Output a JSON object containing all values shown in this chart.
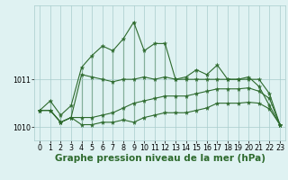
{
  "title": "Graphe pression niveau de la mer (hPa)",
  "x_labels": [
    "0",
    "1",
    "2",
    "3",
    "4",
    "5",
    "6",
    "7",
    "8",
    "9",
    "10",
    "11",
    "12",
    "13",
    "14",
    "15",
    "16",
    "17",
    "18",
    "19",
    "20",
    "21",
    "22",
    "23"
  ],
  "hours": [
    0,
    1,
    2,
    3,
    4,
    5,
    6,
    7,
    8,
    9,
    10,
    11,
    12,
    13,
    14,
    15,
    16,
    17,
    18,
    19,
    20,
    21,
    22,
    23
  ],
  "line1": [
    1010.35,
    1010.55,
    1010.25,
    1010.45,
    1011.25,
    1011.5,
    1011.7,
    1011.6,
    1011.85,
    1012.2,
    1011.6,
    1011.75,
    1011.75,
    1011.0,
    1011.05,
    1011.2,
    1011.1,
    1011.3,
    1011.0,
    1011.0,
    1011.05,
    1010.85,
    1010.45,
    1010.05
  ],
  "line2": [
    1010.35,
    1010.35,
    1010.1,
    1010.2,
    1011.1,
    1011.05,
    1011.0,
    1010.95,
    1011.0,
    1011.0,
    1011.05,
    1011.0,
    1011.05,
    1011.0,
    1011.0,
    1011.0,
    1011.0,
    1011.0,
    1011.0,
    1011.0,
    1011.0,
    1011.0,
    1010.7,
    1010.05
  ],
  "line3": [
    1010.35,
    1010.35,
    1010.1,
    1010.2,
    1010.2,
    1010.2,
    1010.25,
    1010.3,
    1010.4,
    1010.5,
    1010.55,
    1010.6,
    1010.65,
    1010.65,
    1010.65,
    1010.7,
    1010.75,
    1010.8,
    1010.8,
    1010.8,
    1010.82,
    1010.75,
    1010.6,
    1010.05
  ],
  "line4": [
    1010.35,
    1010.35,
    1010.1,
    1010.2,
    1010.05,
    1010.05,
    1010.1,
    1010.1,
    1010.15,
    1010.1,
    1010.2,
    1010.25,
    1010.3,
    1010.3,
    1010.3,
    1010.35,
    1010.4,
    1010.5,
    1010.5,
    1010.5,
    1010.52,
    1010.5,
    1010.38,
    1010.05
  ],
  "line_color": "#2d6a2d",
  "bg_color": "#dff2f2",
  "grid_color": "#a8cccc",
  "ylim_min": 1009.72,
  "ylim_max": 1012.55,
  "ytick_values": [
    1010,
    1011
  ],
  "title_fontsize": 7.5,
  "tick_fontsize": 5.8
}
